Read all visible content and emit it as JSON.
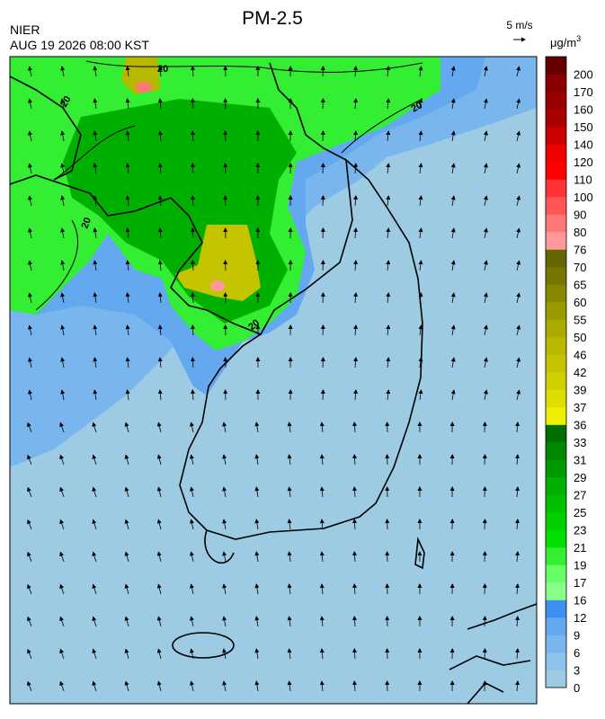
{
  "header": {
    "title": "PM-2.5",
    "agency": "NIER",
    "timestamp": "AUG 19 2026 08:00 KST"
  },
  "wind_legend": {
    "label": "5 m/s"
  },
  "colorbar": {
    "unit": "μg/m",
    "unit_exponent": "3",
    "levels": [
      "0",
      "3",
      "6",
      "9",
      "12",
      "16",
      "17",
      "19",
      "21",
      "23",
      "25",
      "27",
      "29",
      "31",
      "33",
      "36",
      "37",
      "39",
      "42",
      "46",
      "50",
      "55",
      "60",
      "65",
      "70",
      "76",
      "80",
      "90",
      "100",
      "110",
      "120",
      "140",
      "150",
      "160",
      "170",
      "200"
    ],
    "colors": [
      "#9ccbe3",
      "#8dc3ea",
      "#7ab6ee",
      "#64a8f0",
      "#3d8ff0",
      "#88ff88",
      "#66ff66",
      "#33ee33",
      "#00e000",
      "#00d000",
      "#00c000",
      "#00b000",
      "#009900",
      "#008800",
      "#006e00",
      "#eeee00",
      "#dddd00",
      "#d0d000",
      "#c4c400",
      "#b8b800",
      "#aaaa00",
      "#999900",
      "#888800",
      "#777700",
      "#666600",
      "#ff9999",
      "#ff7777",
      "#ff5555",
      "#ff3333",
      "#ff0000",
      "#ee0000",
      "#cc0000",
      "#aa0000",
      "#990000",
      "#880000",
      "#660000"
    ]
  },
  "map": {
    "contour_labels": [
      "20",
      "20",
      "20",
      "20",
      "20"
    ]
  }
}
